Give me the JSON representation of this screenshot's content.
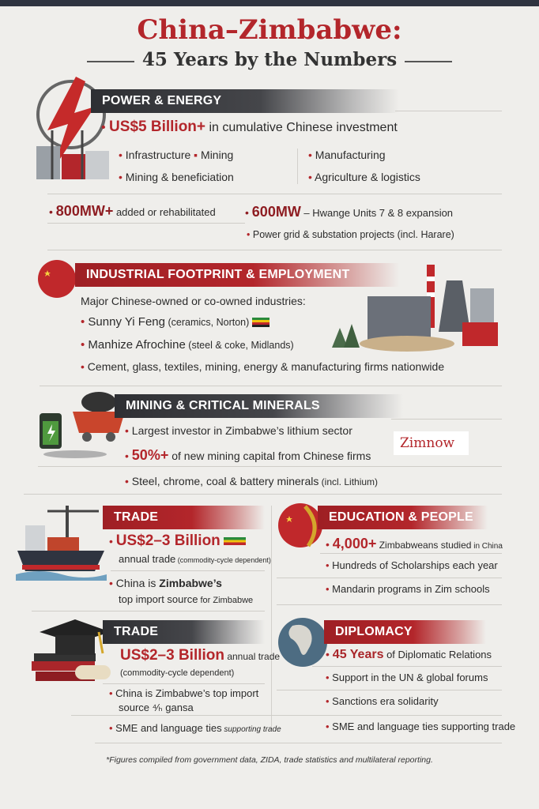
{
  "title": {
    "line1": "China–Zimbabwe:",
    "line2": "45 Years by the Numbers"
  },
  "colors": {
    "accent_red": "#b3262b",
    "dark_band": "#2e2f33",
    "background": "#efeeeb"
  },
  "power": {
    "heading": "POWER & ENERGY",
    "icon": "lightning-power-plant-icon",
    "lead_value": "US$5 Billion+",
    "lead_text": " in cumulative Chinese investment",
    "items": [
      "Infrastructure",
      "Mining",
      "Mining & beneficiation",
      "Manufacturing",
      "Agriculture & logistics"
    ],
    "mw1_value": "800MW+",
    "mw1_text": " added or rehabilitated",
    "mw2_value": "600MW",
    "mw2_text": " – Hwange Units 7 & 8 expansion",
    "grid": "Power grid & substation projects (incl. Harare)"
  },
  "industry": {
    "heading": "INDUSTRIAL FOOTPRINT & EMPLOYMENT",
    "icon": "china-flag-globe-icon",
    "intro": "Major Chinese-owned or co-owned industries:",
    "items": [
      {
        "name": "Sunny Yi Feng",
        "detail": " (ceramics, Norton)"
      },
      {
        "name": "Manhize Afrochine",
        "detail": " (steel & coke, Midlands)"
      },
      {
        "name": "Cement, glass, textiles, mining, energy & manufacturing firms nationwide",
        "detail": ""
      }
    ]
  },
  "mining": {
    "heading": "MINING & CRITICAL MINERALS",
    "icon": "battery-mine-cart-icon",
    "item1": "Largest investor in Zimbabwe’s lithium sector",
    "item2_value": "50%+",
    "item2_text": " of new mining capital from Chinese firms",
    "item3": "Steel, chrome, coal & battery minerals",
    "item3_small": " (incl. Lithium)",
    "logo": "Zimnow"
  },
  "trade1": {
    "heading": "TRADE",
    "icon": "cargo-ship-icon",
    "value": "US$2–3 Billion",
    "line2": "annual trade",
    "line2_small": " (commodity-cycle dependent)",
    "line3a": "China is ",
    "line3b": "Zimbabwe’s",
    "line4": "top import source",
    "line4_small": " for Zimbabwe"
  },
  "education": {
    "heading": "EDUCATION & PEOPLE",
    "icon": "china-flag-icon",
    "value": "4,000+",
    "value_text": " Zimbabweans studied",
    "value_small": "  in China",
    "item2": "Hundreds of Scholarships each year",
    "item3": "Mandarin programs in Zim schools"
  },
  "trade2": {
    "heading": "TRADE",
    "icon": "graduation-cap-books-icon",
    "value": "US$2–3 Billion",
    "value_text": " annual trade",
    "line2": "(commodity-cycle dependent)",
    "item1a": "China is Zimbabwe’s top import",
    "item1b": "source ⁴⁄ₕ gansa",
    "item2": "SME and language ties",
    "item2_small": " supporting trade"
  },
  "diplomacy": {
    "heading": "DIPLOMACY",
    "icon": "globe-icon",
    "value": "45 Years",
    "value_text": " of Diplomatic Relations",
    "item2": "Support in the UN & global forums",
    "item3": "Sanctions era solidarity",
    "item4": "SME and language ties supporting trade"
  },
  "footnote": "*Figures compiled from government data, ZIDA, trade statistics and multilateral reporting."
}
